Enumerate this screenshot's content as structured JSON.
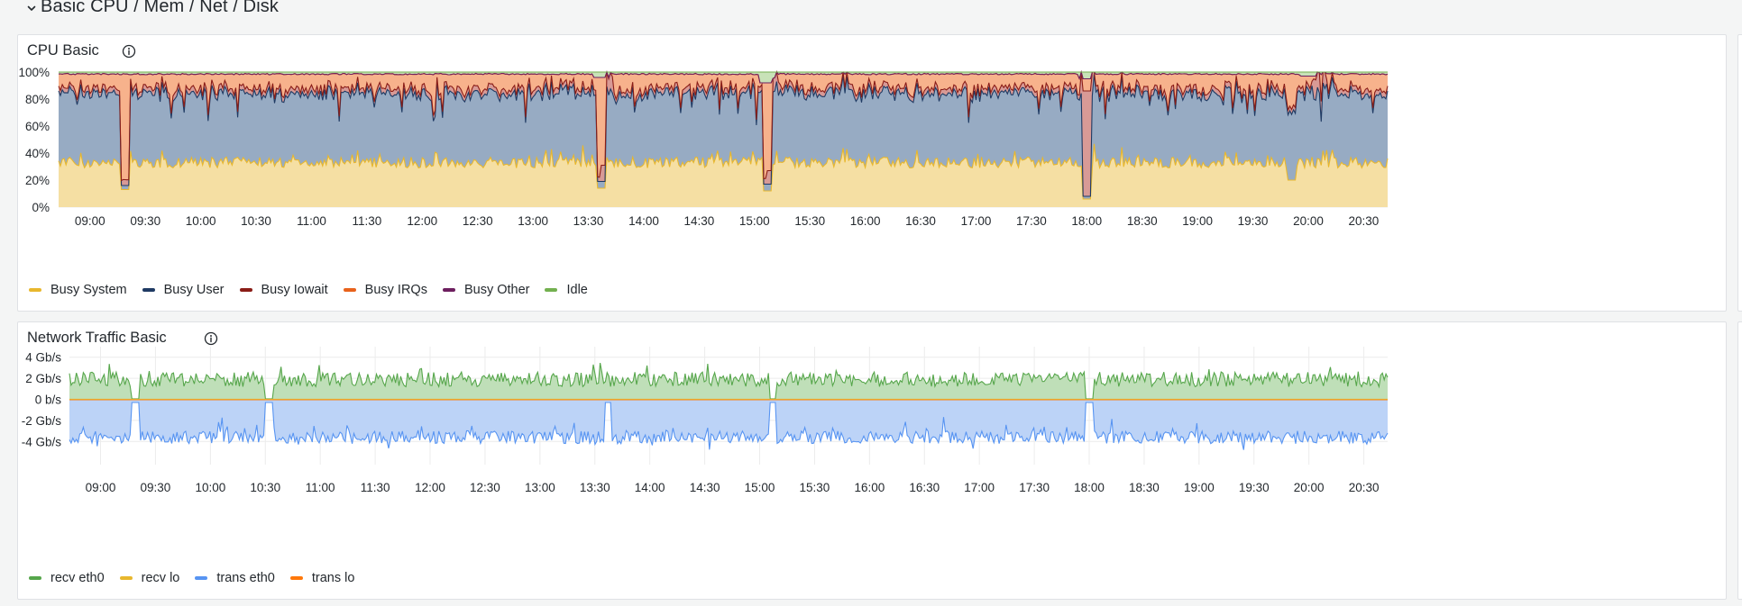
{
  "row": {
    "title": "Basic CPU / Mem / Net / Disk"
  },
  "icons": {
    "chevron": "chevron-down-icon",
    "info": "info-circle-icon"
  },
  "panels": [
    {
      "title": "CPU Basic",
      "legend": [
        {
          "label": "Busy System",
          "color": "#e8b72d"
        },
        {
          "label": "Busy User",
          "color": "#1f3a63"
        },
        {
          "label": "Busy Iowait",
          "color": "#8a1d17"
        },
        {
          "label": "Busy IRQs",
          "color": "#e8621b"
        },
        {
          "label": "Busy Other",
          "color": "#6d1f5f"
        },
        {
          "label": "Idle",
          "color": "#73b04f"
        }
      ]
    },
    {
      "title": "Network Traffic Basic",
      "legend": [
        {
          "label": "recv eth0",
          "color": "#56a64b"
        },
        {
          "label": "recv lo",
          "color": "#e8b72d"
        },
        {
          "label": "trans eth0",
          "color": "#5794f2"
        },
        {
          "label": "trans lo",
          "color": "#ff780a"
        }
      ]
    }
  ],
  "chart_data": [
    {
      "type": "area",
      "title": "CPU Basic",
      "stacked": true,
      "x_ticks": [
        "09:00",
        "09:30",
        "10:00",
        "10:30",
        "11:00",
        "11:30",
        "12:00",
        "12:30",
        "13:00",
        "13:30",
        "14:00",
        "14:30",
        "15:00",
        "15:30",
        "16:00",
        "16:30",
        "17:00",
        "17:30",
        "18:00",
        "18:30",
        "19:00",
        "19:30",
        "20:00",
        "20:30"
      ],
      "y_ticks": [
        "0%",
        "20%",
        "40%",
        "60%",
        "80%",
        "100%"
      ],
      "ylim": [
        0,
        100
      ],
      "x_range": [
        "08:43",
        "20:43"
      ],
      "series": [
        {
          "name": "Busy System",
          "color": "#e8b72d",
          "fill": "#f5dfa3",
          "typical": 33,
          "events": [
            [
              "09:19",
              13
            ],
            [
              "13:37",
              14
            ],
            [
              "15:07",
              12
            ],
            [
              "18:00",
              6
            ],
            [
              "19:51",
              20
            ]
          ]
        },
        {
          "name": "Busy User",
          "color": "#1f3a63",
          "fill": "#97abc3",
          "typical": 51,
          "events": [
            [
              "09:19",
              3
            ],
            [
              "13:37",
              5
            ],
            [
              "15:07",
              5
            ],
            [
              "18:00",
              2
            ]
          ]
        },
        {
          "name": "Busy Iowait",
          "color": "#8a1d17",
          "fill": "#d89a96",
          "typical": 3,
          "events": [
            [
              "13:40",
              12
            ],
            [
              "15:10",
              10
            ],
            [
              "18:00",
              78
            ],
            [
              "20:06",
              15
            ]
          ]
        },
        {
          "name": "Busy IRQs",
          "color": "#e8621b",
          "fill": "#f7b28c",
          "typical": 12
        },
        {
          "name": "Busy Other",
          "color": "#6d1f5f",
          "fill": "#d9b8d2",
          "typical": 0
        },
        {
          "name": "Idle",
          "color": "#73b04f",
          "fill": "#c8e2b8",
          "typical": 1,
          "events": [
            [
              "13:37",
              4
            ],
            [
              "15:07",
              8
            ],
            [
              "18:00",
              5
            ],
            [
              "20:00",
              3
            ]
          ]
        }
      ]
    },
    {
      "type": "area",
      "title": "Network Traffic Basic",
      "x_ticks": [
        "09:00",
        "09:30",
        "10:00",
        "10:30",
        "11:00",
        "11:30",
        "12:00",
        "12:30",
        "13:00",
        "13:30",
        "14:00",
        "14:30",
        "15:00",
        "15:30",
        "16:00",
        "16:30",
        "17:00",
        "17:30",
        "18:00",
        "18:30",
        "19:00",
        "19:30",
        "20:00",
        "20:30"
      ],
      "y_ticks": [
        "4 Gb/s",
        "2 Gb/s",
        "0 b/s",
        "-2 Gb/s",
        "-4 Gb/s"
      ],
      "ylim": [
        -5,
        5
      ],
      "x_range": [
        "08:43",
        "20:43"
      ],
      "series": [
        {
          "name": "recv eth0",
          "color": "#56a64b",
          "fill": "#bfdfb8",
          "typical": 1.9,
          "dips": [
            "09:19",
            "10:32",
            "15:07",
            "18:00"
          ]
        },
        {
          "name": "recv lo",
          "color": "#e8b72d",
          "typical": 0
        },
        {
          "name": "trans eth0",
          "color": "#5794f2",
          "fill": "#bcd3f7",
          "typical": -3.6,
          "dips": [
            "09:19",
            "10:32",
            "13:37",
            "15:07",
            "18:00"
          ]
        },
        {
          "name": "trans lo",
          "color": "#ff780a",
          "typical": 0
        }
      ]
    }
  ]
}
